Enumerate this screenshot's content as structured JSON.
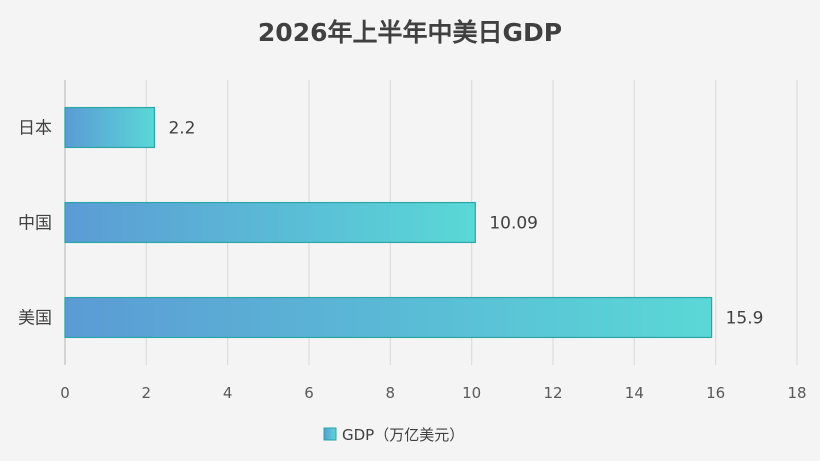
{
  "chart_data": {
    "type": "bar",
    "orientation": "horizontal",
    "title": "2026年上半年中美日GDP",
    "categories": [
      "美国",
      "中国",
      "日本"
    ],
    "series": [
      {
        "name": "GDP（万亿美元）",
        "values": [
          15.9,
          10.09,
          2.2
        ]
      }
    ],
    "data_labels": [
      "15.9",
      "10.09",
      "2.2"
    ],
    "xlim": [
      0,
      18
    ],
    "x_ticks": [
      0,
      2,
      4,
      6,
      8,
      10,
      12,
      14,
      16,
      18
    ],
    "grid": "vertical",
    "legend_position": "bottom",
    "colors": {
      "bar_gradient_start": "#5b9bd5",
      "bar_gradient_end": "#5ad8d6",
      "bar_stroke": "#2aa6a6",
      "grid": "#dcdcdc",
      "axis": "#bfbfbf",
      "background": "#f4f4f4"
    }
  }
}
